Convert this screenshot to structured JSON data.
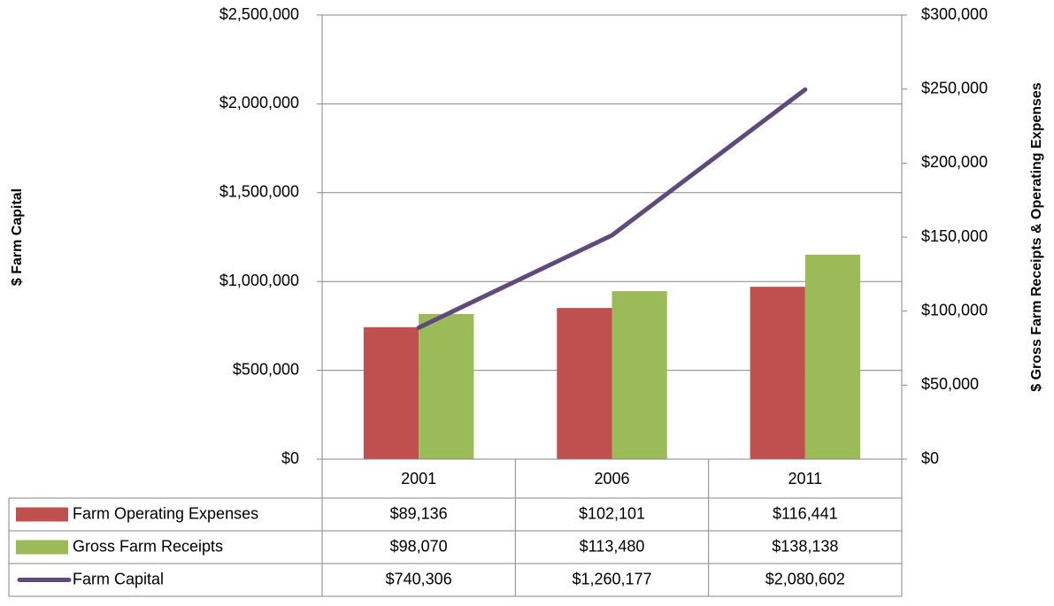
{
  "chart_data": {
    "type": "bar",
    "categories": [
      "2001",
      "2006",
      "2011"
    ],
    "ylabel": "$ Farm Capital",
    "y2label": "$ Gross Farm Receipts & Operating Expenses",
    "ylim": [
      0,
      2500000
    ],
    "yticks": [
      {
        "value": 0,
        "label": "$0"
      },
      {
        "value": 500000,
        "label": "$500,000"
      },
      {
        "value": 1000000,
        "label": "$1,000,000"
      },
      {
        "value": 1500000,
        "label": "$1,500,000"
      },
      {
        "value": 2000000,
        "label": "$2,000,000"
      },
      {
        "value": 2500000,
        "label": "$2,500,000"
      }
    ],
    "y2lim": [
      0,
      300000
    ],
    "y2ticks": [
      {
        "value": 0,
        "label": "$0"
      },
      {
        "value": 50000,
        "label": "$50,000"
      },
      {
        "value": 100000,
        "label": "$100,000"
      },
      {
        "value": 150000,
        "label": "$150,000"
      },
      {
        "value": 200000,
        "label": "$200,000"
      },
      {
        "value": 250000,
        "label": "$250,000"
      },
      {
        "value": 300000,
        "label": "$300,000"
      }
    ],
    "grid": true,
    "series": [
      {
        "name": "Farm Operating Expenses",
        "type": "bar",
        "axis": "y2",
        "color": "#c0504d",
        "values": [
          89136,
          102101,
          116441
        ],
        "value_labels": [
          "$89,136",
          "$102,101",
          "$116,441"
        ]
      },
      {
        "name": "Gross Farm Receipts",
        "type": "bar",
        "axis": "y2",
        "color": "#9bbb59",
        "values": [
          98070,
          113480,
          138138
        ],
        "value_labels": [
          "$98,070",
          "$113,480",
          "$138,138"
        ]
      },
      {
        "name": "Farm Capital",
        "type": "line",
        "axis": "y",
        "color": "#604a7b",
        "values": [
          740306,
          1260177,
          2080602
        ],
        "value_labels": [
          "$740,306",
          "$1,260,177",
          "$2,080,602"
        ]
      }
    ]
  }
}
